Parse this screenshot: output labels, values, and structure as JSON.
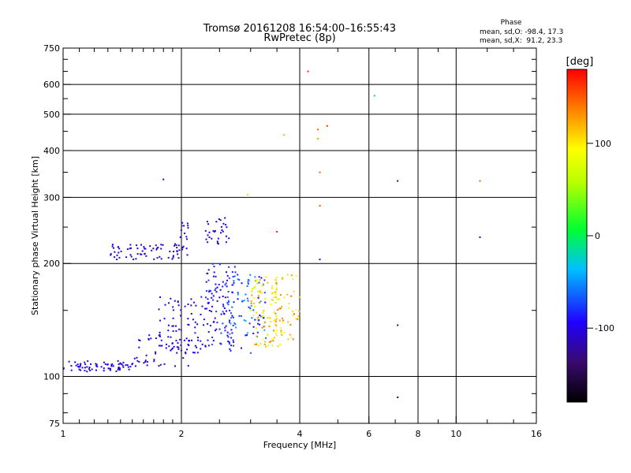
{
  "chart_data": {
    "type": "scatter",
    "title": "Tromsø 20161208 16:54:00–16:55:43",
    "subtitle": "RwPretec (8p)",
    "xlabel": "Frequency [MHz]",
    "ylabel": "Stationary phase Virtual Height [km]",
    "xscale": "log",
    "yscale": "log",
    "xlim": [
      1,
      16
    ],
    "ylim": [
      75,
      750
    ],
    "xticks": [
      1,
      2,
      4,
      6,
      8,
      10,
      16
    ],
    "xtick_labels": [
      "1",
      "2",
      "4",
      "6",
      "8",
      "10",
      "16"
    ],
    "yticks": [
      75,
      100,
      200,
      300,
      400,
      500,
      600,
      750
    ],
    "ytick_labels": [
      "75",
      "100",
      "200",
      "300",
      "400",
      "500",
      "600",
      "750"
    ],
    "grid": true,
    "colorbar": {
      "label": "[deg]",
      "min": -180,
      "max": 180,
      "ticks": [
        100,
        0,
        -100
      ],
      "tick_labels": [
        "100",
        "0",
        "-100"
      ]
    },
    "stats": {
      "heading": "Phase",
      "line_o": "mean, sd,O: -98.4, 17.3",
      "line_x": "mean, sd,X:  91.2, 23.3"
    },
    "clusters": [
      {
        "x": [
          1.0,
          1.5
        ],
        "y": [
          103,
          110
        ],
        "phase": [
          -110,
          -95
        ],
        "n": 70
      },
      {
        "x": [
          1.5,
          2.1
        ],
        "y": [
          106,
          130
        ],
        "phase": [
          -115,
          -90
        ],
        "n": 55
      },
      {
        "x": [
          1.75,
          2.3
        ],
        "y": [
          115,
          165
        ],
        "phase": [
          -120,
          -85
        ],
        "n": 70
      },
      {
        "x": [
          2.3,
          2.75
        ],
        "y": [
          120,
          200
        ],
        "phase": [
          -115,
          -70
        ],
        "n": 110
      },
      {
        "x": [
          2.6,
          3.3
        ],
        "y": [
          115,
          190
        ],
        "phase": [
          -100,
          -40
        ],
        "n": 80
      },
      {
        "x": [
          3.0,
          3.6
        ],
        "y": [
          120,
          185
        ],
        "phase": [
          60,
          140
        ],
        "n": 100
      },
      {
        "x": [
          3.4,
          4.0
        ],
        "y": [
          125,
          190
        ],
        "phase": [
          80,
          150
        ],
        "n": 50
      },
      {
        "x": [
          1.31,
          2.0
        ],
        "y": [
          205,
          225
        ],
        "phase": [
          -115,
          -95
        ],
        "n": 65
      },
      {
        "x": [
          1.9,
          2.1
        ],
        "y": [
          210,
          260
        ],
        "phase": [
          -115,
          -95
        ],
        "n": 20
      },
      {
        "x": [
          2.3,
          2.65
        ],
        "y": [
          225,
          265
        ],
        "phase": [
          -110,
          -95
        ],
        "n": 30
      }
    ],
    "outliers": [
      {
        "x": 4.2,
        "y": 650,
        "phase": 170
      },
      {
        "x": 6.2,
        "y": 560,
        "phase": -30
      },
      {
        "x": 4.7,
        "y": 465,
        "phase": 160
      },
      {
        "x": 4.45,
        "y": 455,
        "phase": 150
      },
      {
        "x": 4.45,
        "y": 430,
        "phase": 130
      },
      {
        "x": 3.65,
        "y": 440,
        "phase": 120
      },
      {
        "x": 4.5,
        "y": 350,
        "phase": 150
      },
      {
        "x": 1.8,
        "y": 335,
        "phase": -110
      },
      {
        "x": 7.1,
        "y": 332,
        "phase": -150
      },
      {
        "x": 11.5,
        "y": 332,
        "phase": 150
      },
      {
        "x": 2.95,
        "y": 305,
        "phase": 60
      },
      {
        "x": 4.5,
        "y": 285,
        "phase": 150
      },
      {
        "x": 3.5,
        "y": 243,
        "phase": 170
      },
      {
        "x": 11.5,
        "y": 235,
        "phase": -120
      },
      {
        "x": 4.5,
        "y": 205,
        "phase": -90
      },
      {
        "x": 7.1,
        "y": 137,
        "phase": -140
      },
      {
        "x": 7.1,
        "y": 88,
        "phase": -150
      }
    ]
  }
}
